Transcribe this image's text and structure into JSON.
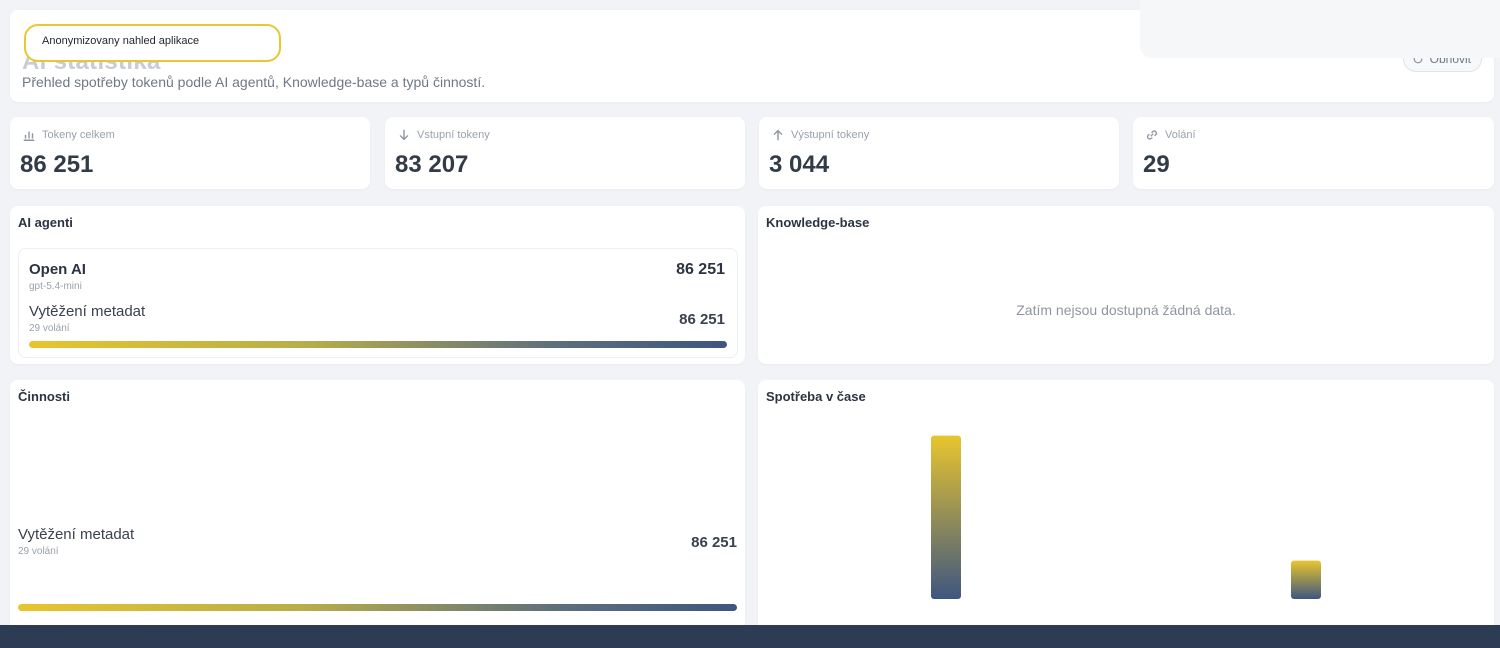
{
  "overlay": {
    "badge_text": "Anonymizovany nahled aplikace"
  },
  "header": {
    "title": "AI statistika",
    "subtitle": "Přehled spotřeby tokenů podle AI agentů, Knowledge-base a typů činností.",
    "refresh_label": "Obnovit"
  },
  "stats": [
    {
      "label": "Tokeny celkem",
      "value": "86 251",
      "icon": "bar-chart-icon"
    },
    {
      "label": "Vstupní tokeny",
      "value": "83 207",
      "icon": "arrow-down-icon"
    },
    {
      "label": "Výstupní tokeny",
      "value": "3 044",
      "icon": "arrow-up-icon"
    },
    {
      "label": "Volání",
      "value": "29",
      "icon": "link-icon"
    }
  ],
  "agents": {
    "title": "AI agenti",
    "items": [
      {
        "name": "Open AI",
        "model": "gpt-5.4-mini",
        "total": "86 251",
        "activity": {
          "name": "Vytěžení metadat",
          "calls": "29 volání",
          "value": "86 251",
          "share": 1.0
        }
      }
    ]
  },
  "knowledge": {
    "title": "Knowledge-base",
    "empty": "Zatím nejsou dostupná žádná data."
  },
  "activities": {
    "title": "Činnosti",
    "items": [
      {
        "name": "Vytěžení metadat",
        "calls": "29 volání",
        "value": "86 251",
        "share": 1.0
      }
    ]
  },
  "timechart": {
    "title": "Spotřeba v čase",
    "colors": {
      "top": "#e8c52e",
      "bottom": "#3e5680"
    },
    "chart_data": {
      "type": "bar",
      "categories": [
        "",
        ""
      ],
      "values": [
        81000,
        19000
      ],
      "ylim": [
        0,
        86251
      ],
      "grid": false
    }
  }
}
